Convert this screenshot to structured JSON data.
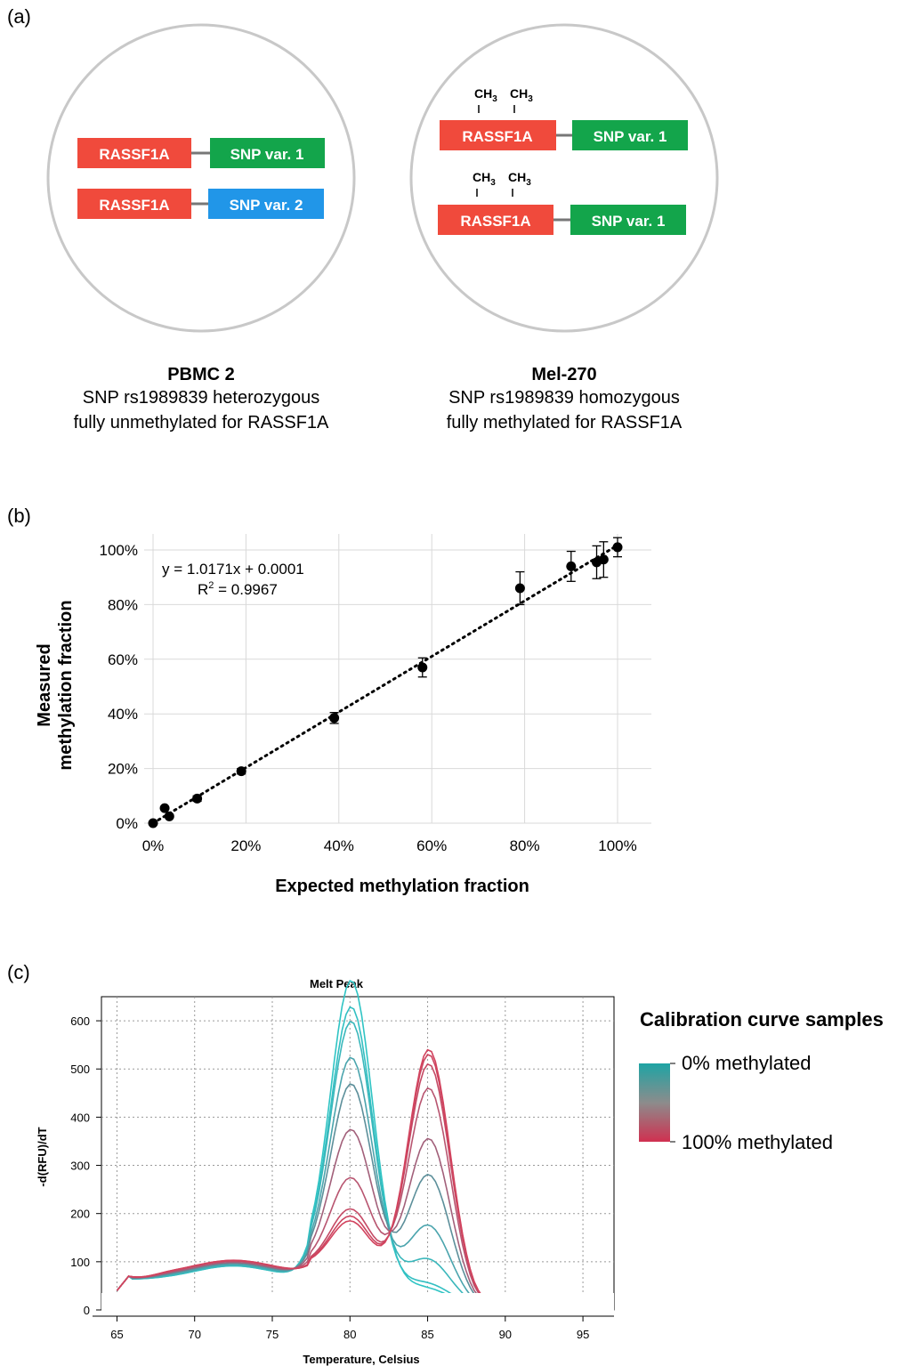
{
  "panel_a": {
    "label": "(a)",
    "left": {
      "rows": [
        {
          "gene": "RASSF1A",
          "snp": "SNP var. 1",
          "snp_color": "#13a54b"
        },
        {
          "gene": "RASSF1A",
          "snp": "SNP var. 2",
          "snp_color": "#2196e8"
        }
      ],
      "caption_title": "PBMC 2",
      "caption_line1": "SNP rs1989839 heterozygous",
      "caption_line2": "fully unmethylated for RASSF1A"
    },
    "right": {
      "rows": [
        {
          "gene": "RASSF1A",
          "snp": "SNP var. 1",
          "snp_color": "#13a54b"
        },
        {
          "gene": "RASSF1A",
          "snp": "SNP var. 1",
          "snp_color": "#13a54b"
        }
      ],
      "methyl_label": "CH",
      "methyl_sub": "3",
      "caption_title": "Mel-270",
      "caption_line1": "SNP rs1989839 homozygous",
      "caption_line2": "fully methylated for RASSF1A"
    },
    "gene_color": "#f04a3c"
  },
  "panel_b": {
    "label": "(b)",
    "chart_data": {
      "type": "scatter",
      "xlabel": "Expected methylation fraction",
      "ylabel_line1": "Measured",
      "ylabel_line2": "methylation fraction",
      "xlim": [
        0,
        1.0
      ],
      "ylim": [
        0,
        1.0
      ],
      "x_ticks": [
        "0%",
        "20%",
        "40%",
        "60%",
        "80%",
        "100%"
      ],
      "y_ticks": [
        "0%",
        "20%",
        "40%",
        "60%",
        "80%",
        "100%"
      ],
      "grid": true,
      "equation": "y = 1.0171x + 0.0001",
      "r2_label": "R",
      "r2_sup": "2",
      "r2_value": " = 0.9967",
      "trend": {
        "slope": 1.0171,
        "intercept": 0.0001
      },
      "points": [
        {
          "x": 0.0,
          "y": 0.0,
          "err": 0
        },
        {
          "x": 0.025,
          "y": 0.055,
          "err": 0
        },
        {
          "x": 0.035,
          "y": 0.025,
          "err": 0
        },
        {
          "x": 0.095,
          "y": 0.09,
          "err": 0.01
        },
        {
          "x": 0.19,
          "y": 0.19,
          "err": 0.01
        },
        {
          "x": 0.39,
          "y": 0.385,
          "err": 0.02
        },
        {
          "x": 0.58,
          "y": 0.57,
          "err": 0.035
        },
        {
          "x": 0.79,
          "y": 0.86,
          "err": 0.06
        },
        {
          "x": 0.9,
          "y": 0.94,
          "err": 0.055
        },
        {
          "x": 0.955,
          "y": 0.955,
          "err": 0.06
        },
        {
          "x": 0.97,
          "y": 0.965,
          "err": 0.065
        },
        {
          "x": 1.0,
          "y": 1.01,
          "err": 0.035
        }
      ]
    }
  },
  "panel_c": {
    "label": "(c)",
    "chart_data": {
      "type": "line",
      "title": "Melt Peak",
      "xlabel": "Temperature, Celsius",
      "ylabel": "-d(RFU)/dT",
      "xlim": [
        64,
        97
      ],
      "ylim": [
        0,
        650
      ],
      "x_ticks": [
        65,
        70,
        75,
        80,
        85,
        90,
        95
      ],
      "y_ticks": [
        0,
        100,
        200,
        300,
        400,
        500,
        600
      ],
      "grid": true,
      "series": [
        {
          "a": 615,
          "b": 15,
          "color": "#2fc4c4"
        },
        {
          "a": 560,
          "b": 25,
          "color": "#32bfc2"
        },
        {
          "a": 530,
          "b": 75,
          "color": "#3ab7bb"
        },
        {
          "a": 455,
          "b": 145,
          "color": "#4aa4ad"
        },
        {
          "a": 400,
          "b": 250,
          "color": "#5c8f9a"
        },
        {
          "a": 305,
          "b": 325,
          "color": "#a2607a"
        },
        {
          "a": 205,
          "b": 430,
          "color": "#b85570"
        },
        {
          "a": 140,
          "b": 480,
          "color": "#c54a65"
        },
        {
          "a": 125,
          "b": 500,
          "color": "#cc4560"
        },
        {
          "a": 115,
          "b": 510,
          "color": "#d2435e"
        }
      ],
      "legend": {
        "title": "Calibration curve samples",
        "top_label": "0% methylated",
        "bottom_label": "100% methylated",
        "top_color": "#1ea4a4",
        "bottom_color": "#d03050"
      }
    }
  }
}
